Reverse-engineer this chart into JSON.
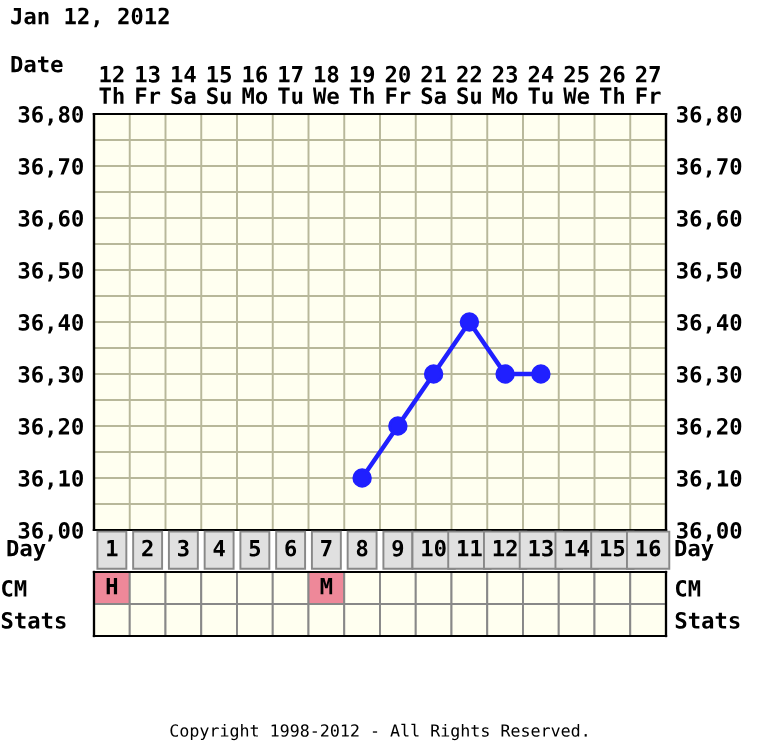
{
  "chart_data": [
    {
      "type": "line",
      "title": "Jan 12, 2012",
      "xlabel": "Date",
      "categories": [
        "12\nTh",
        "13\nFr",
        "14\nSa",
        "15\nSu",
        "16\nMo",
        "17\nTu",
        "18\nWe",
        "19\nTh",
        "20\nFr",
        "21\nSa",
        "22\nSu",
        "23\nMo",
        "24\nTu",
        "25\nWe",
        "26\nTh",
        "27\nFr"
      ],
      "series": [
        {
          "color": "#2020ff",
          "values": [
            null,
            null,
            null,
            null,
            null,
            null,
            null,
            36.1,
            36.2,
            36.3,
            36.4,
            36.3,
            36.3,
            null,
            null,
            null
          ]
        }
      ],
      "ylim": [
        36.0,
        36.8
      ],
      "yticks": [
        {
          "value": 36.0,
          "label": "36,00"
        },
        {
          "value": 36.05,
          "label": null
        },
        {
          "value": 36.1,
          "label": "36,10"
        },
        {
          "value": 36.15,
          "label": null
        },
        {
          "value": 36.2,
          "label": "36,20"
        },
        {
          "value": 36.25,
          "label": null
        },
        {
          "value": 36.3,
          "label": "36,30"
        },
        {
          "value": 36.35,
          "label": null
        },
        {
          "value": 36.4,
          "label": "36,40"
        },
        {
          "value": 36.45,
          "label": null
        },
        {
          "value": 36.5,
          "label": "36,50"
        },
        {
          "value": 36.55,
          "label": null
        },
        {
          "value": 36.6,
          "label": "36,60"
        },
        {
          "value": 36.65,
          "label": null
        },
        {
          "value": 36.7,
          "label": "36,70"
        },
        {
          "value": 36.75,
          "label": null
        },
        {
          "value": 36.8,
          "label": "36,80"
        }
      ],
      "y2lim": [
        36.0,
        36.8
      ],
      "y2ticks": [
        {
          "value": 36.0,
          "label": "36,00"
        },
        {
          "value": 36.05,
          "label": null
        },
        {
          "value": 36.1,
          "label": "36,10"
        },
        {
          "value": 36.15,
          "label": null
        },
        {
          "value": 36.2,
          "label": "36,20"
        },
        {
          "value": 36.25,
          "label": null
        },
        {
          "value": 36.3,
          "label": "36,30"
        },
        {
          "value": 36.35,
          "label": null
        },
        {
          "value": 36.4,
          "label": "36,40"
        },
        {
          "value": 36.45,
          "label": null
        },
        {
          "value": 36.5,
          "label": "36,50"
        },
        {
          "value": 36.55,
          "label": null
        },
        {
          "value": 36.6,
          "label": "36,60"
        },
        {
          "value": 36.65,
          "label": null
        },
        {
          "value": 36.7,
          "label": "36,70"
        },
        {
          "value": 36.75,
          "label": null
        },
        {
          "value": 36.8,
          "label": "36,80"
        }
      ],
      "grid": true,
      "marker": "circle",
      "line_style": "solid"
    },
    {
      "type": "heatmap",
      "xlabel": "Day",
      "categories": [
        "1",
        "2",
        "3",
        "4",
        "5",
        "6",
        "7",
        "8",
        "9",
        "10",
        "11",
        "12",
        "13",
        "14",
        "15",
        "16"
      ],
      "y_categories": [
        "CM",
        "Stats"
      ],
      "y2_categories": [
        "CM",
        "Stats"
      ],
      "cells": [
        [
          null,
          null,
          null,
          null,
          null,
          null,
          null,
          null,
          null,
          null,
          null,
          null,
          null,
          null,
          null,
          null
        ],
        [
          null,
          null,
          null,
          null,
          null,
          null,
          null,
          null,
          null,
          null,
          null,
          null,
          null,
          null,
          null,
          null
        ]
      ],
      "cell_labels": [
        [
          "H",
          null,
          null,
          null,
          null,
          null,
          "M",
          null,
          null,
          null,
          null,
          null,
          null,
          null,
          null,
          null
        ],
        [
          null,
          null,
          null,
          null,
          null,
          null,
          null,
          null,
          null,
          null,
          null,
          null,
          null,
          null,
          null,
          null
        ]
      ],
      "annotations": [
        "Copyright 1998-2012 - All Rights Reserved."
      ]
    }
  ]
}
